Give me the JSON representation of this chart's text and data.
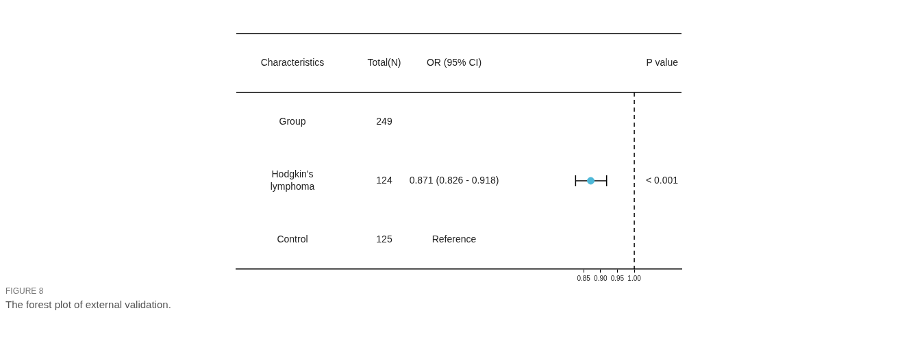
{
  "chart_data": {
    "type": "scatter",
    "orientation": "horizontal",
    "ylabel": "Characteristics",
    "title": "FIGURE 8",
    "subtitle": "The forest plot of external validation.",
    "categories": [
      "Group",
      "Hodgkin's lymphoma",
      "Control"
    ],
    "values": [
      null,
      0.871,
      null
    ],
    "errors": [
      null,
      [
        0.826,
        0.918
      ],
      null
    ],
    "color": "#4db8d8",
    "marker": "circle",
    "grid": false,
    "legend": false,
    "xlim": [
      -0.18,
      1.14
    ],
    "xticks": [
      {
        "value": 0.85,
        "label": "0.85"
      },
      {
        "value": 0.9,
        "label": "0.90"
      },
      {
        "value": 0.95,
        "label": "0.95"
      },
      {
        "value": 1,
        "label": "1.00"
      }
    ],
    "ref_lines": [
      {
        "axis": "x",
        "value": 1,
        "line_style": "dashed",
        "color": "#000000"
      }
    ],
    "annotations": [
      "Total(N)",
      "OR (95% CI)",
      "P value",
      "249",
      "124",
      "0.871 (0.826 - 0.918)",
      "< 0.001",
      "125",
      "Reference"
    ]
  }
}
